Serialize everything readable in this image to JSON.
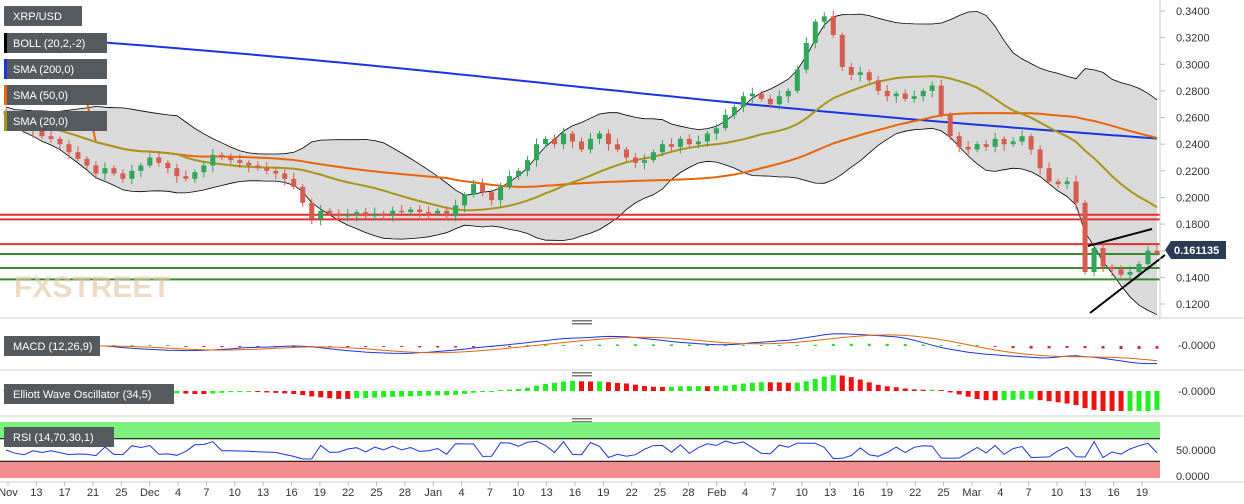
{
  "chart_data": {
    "type": "candlestick",
    "symbol": "XRP/USD",
    "price_axis": {
      "ticks": [
        "0.3400",
        "0.3200",
        "0.3000",
        "0.2800",
        "0.2600",
        "0.2400",
        "0.2200",
        "0.2000",
        "0.1800",
        "0.1600",
        "0.1400",
        "0.1200"
      ],
      "range": [
        0.1095,
        0.345
      ]
    },
    "last_price": "0.161135",
    "x_tick_labels": [
      "Nov",
      "13",
      "17",
      "21",
      "25",
      "Dec",
      "4",
      "7",
      "10",
      "13",
      "16",
      "19",
      "22",
      "25",
      "28",
      "Jan",
      "4",
      "7",
      "10",
      "13",
      "16",
      "19",
      "22",
      "25",
      "28",
      "Feb",
      "4",
      "7",
      "10",
      "13",
      "16",
      "19",
      "22",
      "25",
      "Mar",
      "4",
      "7",
      "10",
      "13",
      "16",
      "19"
    ],
    "overlays": [
      {
        "name": "BOLL (20,2,-2)",
        "color": "#000000"
      },
      {
        "name": "SMA (200,0)",
        "color": "#1a33e6"
      },
      {
        "name": "SMA (50,0)",
        "color": "#e8650a"
      },
      {
        "name": "SMA (20,0)",
        "color": "#a8951a"
      }
    ],
    "up_color": "#2fa65a",
    "down_color": "#d65c4f",
    "candle_closes": [
      0.262,
      0.258,
      0.252,
      0.25,
      0.246,
      0.244,
      0.24,
      0.234,
      0.229,
      0.224,
      0.218,
      0.222,
      0.218,
      0.214,
      0.22,
      0.224,
      0.23,
      0.226,
      0.222,
      0.216,
      0.214,
      0.219,
      0.224,
      0.232,
      0.23,
      0.228,
      0.226,
      0.224,
      0.222,
      0.22,
      0.218,
      0.214,
      0.208,
      0.196,
      0.184,
      0.19,
      0.188,
      0.186,
      0.187,
      0.189,
      0.186,
      0.188,
      0.187,
      0.19,
      0.189,
      0.191,
      0.189,
      0.188,
      0.19,
      0.186,
      0.194,
      0.202,
      0.21,
      0.204,
      0.198,
      0.208,
      0.216,
      0.22,
      0.228,
      0.24,
      0.244,
      0.24,
      0.248,
      0.242,
      0.236,
      0.244,
      0.248,
      0.24,
      0.236,
      0.23,
      0.226,
      0.228,
      0.234,
      0.24,
      0.238,
      0.244,
      0.24,
      0.242,
      0.248,
      0.252,
      0.262,
      0.268,
      0.276,
      0.278,
      0.274,
      0.27,
      0.276,
      0.28,
      0.296,
      0.316,
      0.332,
      0.336,
      0.322,
      0.298,
      0.292,
      0.294,
      0.288,
      0.28,
      0.276,
      0.278,
      0.274,
      0.276,
      0.28,
      0.284,
      0.262,
      0.246,
      0.238,
      0.236,
      0.24,
      0.238,
      0.244,
      0.24,
      0.242,
      0.246,
      0.236,
      0.222,
      0.212,
      0.21,
      0.212,
      0.196,
      0.144,
      0.162,
      0.148,
      0.146,
      0.142,
      0.144,
      0.15,
      0.16,
      0.158
    ],
    "horizontal_levels": [
      {
        "value": 0.187,
        "color": "#e03030"
      },
      {
        "value": 0.1835,
        "color": "#e03030"
      },
      {
        "value": 0.165,
        "color": "#e03030"
      },
      {
        "value": 0.1575,
        "color": "#3a8a2a"
      },
      {
        "value": 0.147,
        "color": "#3a8a2a"
      },
      {
        "value": 0.1385,
        "color": "#3a8a2a"
      }
    ],
    "panels": [
      {
        "name": "MACD (12,26,9)",
        "tick": "-0.0000"
      },
      {
        "name": "Elliott Wave Oscillator (34,5)",
        "tick": "-0.0000"
      },
      {
        "name": "RSI (14,70,30,1)",
        "ticks": [
          "50.0000",
          "0.0000"
        ],
        "overbought": 70,
        "oversold": 30
      }
    ],
    "watermark": "FXSTREET"
  }
}
